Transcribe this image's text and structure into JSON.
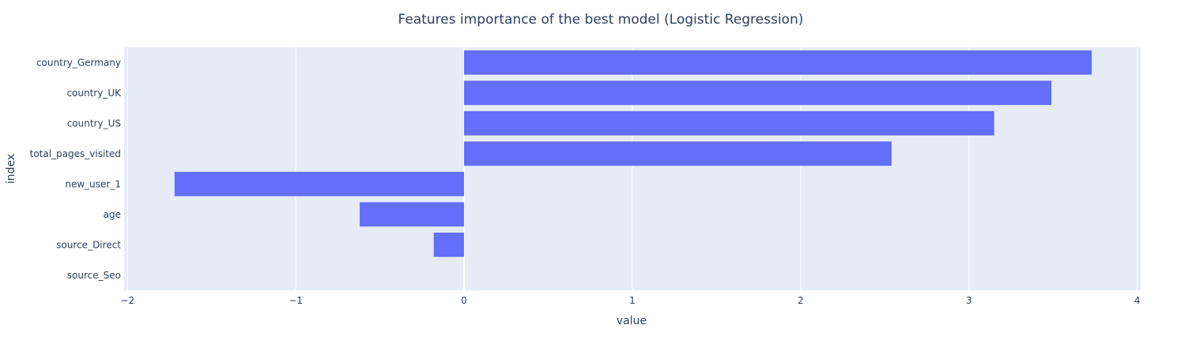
{
  "chart_data": {
    "type": "bar",
    "orientation": "horizontal",
    "title": "Features importance of the best model (Logistic Regression)",
    "xlabel": "value",
    "ylabel": "index",
    "categories": [
      "country_Germany",
      "country_UK",
      "country_US",
      "total_pages_visited",
      "new_user_1",
      "age",
      "source_Direct",
      "source_Seo"
    ],
    "values": [
      3.73,
      3.49,
      3.15,
      2.54,
      -1.72,
      -0.62,
      -0.18,
      0.0
    ],
    "xlim": [
      -2.02,
      4.02
    ],
    "xticks": [
      -2,
      -1,
      0,
      1,
      2,
      3,
      4
    ],
    "xtick_labels": [
      "−2",
      "−1",
      "0",
      "1",
      "2",
      "3",
      "4"
    ],
    "grid": true,
    "colors": {
      "bar": "#636efa",
      "plot_bg": "#e5ecf6",
      "grid": "#ffffff",
      "text": "#2a3f5f"
    }
  }
}
